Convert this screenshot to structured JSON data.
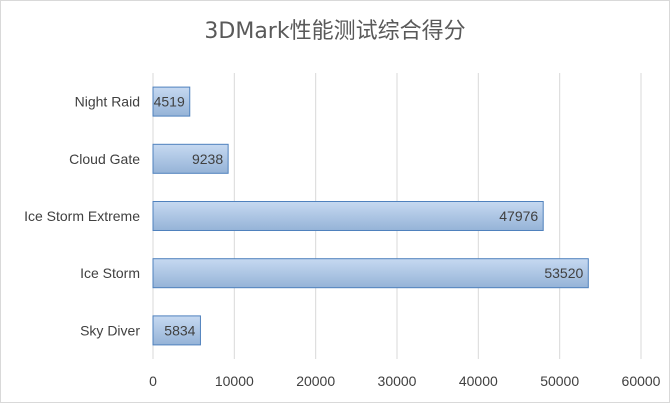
{
  "chart_data": {
    "type": "bar",
    "orientation": "horizontal",
    "title": "3DMark性能测试综合得分",
    "categories": [
      "Night Raid",
      "Cloud Gate",
      "Ice Storm Extreme",
      "Ice Storm",
      "Sky Diver"
    ],
    "values": [
      4519,
      9238,
      47976,
      53520,
      5834
    ],
    "data_labels": [
      "4519",
      "9238",
      "47976",
      "53520",
      "5834"
    ],
    "x_ticks": [
      "0",
      "10000",
      "20000",
      "30000",
      "40000",
      "50000",
      "60000"
    ],
    "xlim": [
      0,
      60000
    ],
    "grid": "vertical",
    "legend": "none",
    "colors": {
      "bar_top": "#c6d9f1",
      "bar_bottom": "#95b3d7",
      "bar_border": "#4f81bd",
      "grid": "#d9d9d9",
      "text": "#404040"
    }
  }
}
